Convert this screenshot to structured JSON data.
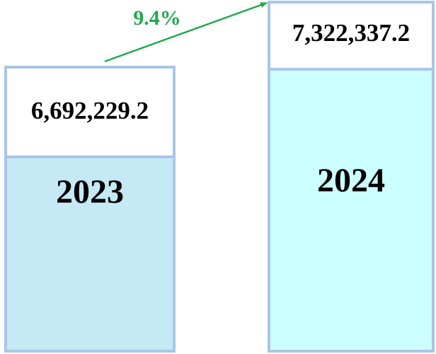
{
  "growth": "9.4%",
  "columns": [
    {
      "value": "6,692,229.2",
      "year": "2023"
    },
    {
      "value": "7,322,337.2",
      "year": "2024"
    }
  ]
}
